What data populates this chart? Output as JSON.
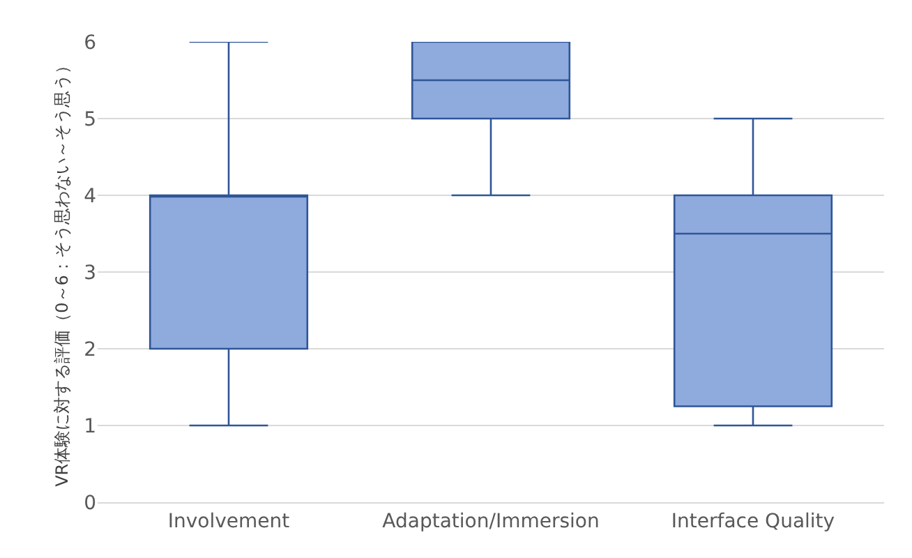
{
  "chart_data": {
    "type": "box",
    "categories": [
      "Involvement",
      "Adaptation/Immersion",
      "Interface Quality"
    ],
    "ylabel": "VR体験に対する評価（0～6：そう思わない～そう思う）",
    "boxes": [
      {
        "low": 1,
        "q1": 2,
        "median": 4,
        "q3": 4,
        "high": 6
      },
      {
        "low": 4,
        "q1": 5,
        "median": 5.5,
        "q3": 6,
        "high": 6
      },
      {
        "low": 1,
        "q1": 1.25,
        "median": 3.5,
        "q3": 4,
        "high": 5
      }
    ],
    "color": "#8faadc",
    "ylim": [
      0,
      6
    ],
    "yticks": [
      0,
      1,
      2,
      3,
      4,
      5,
      6
    ],
    "grid": "y",
    "legend": false
  }
}
